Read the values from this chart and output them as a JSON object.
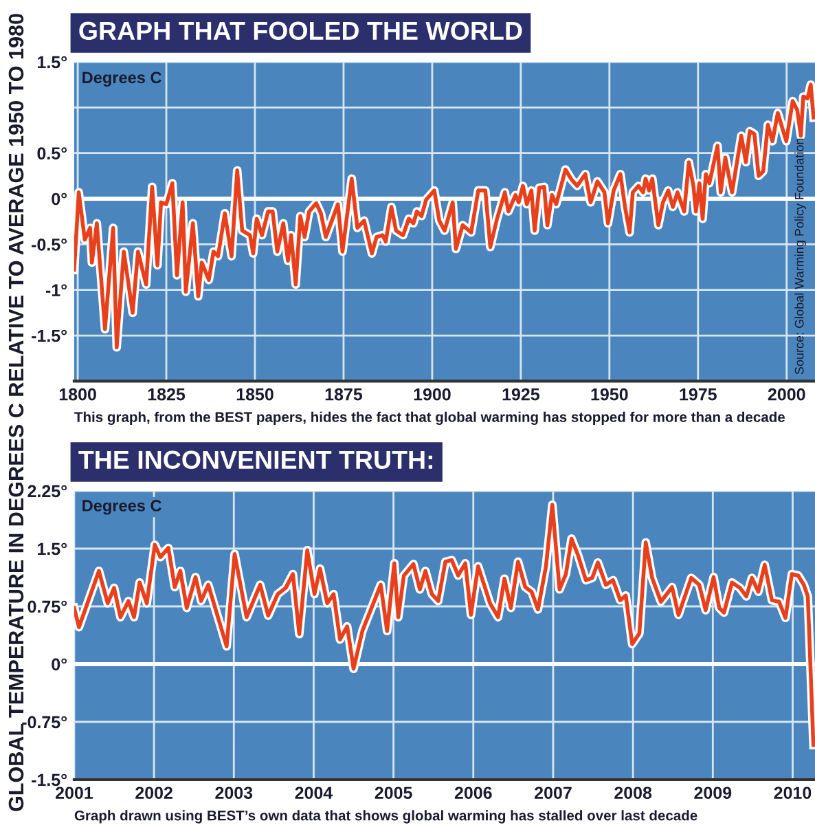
{
  "chart_data": [
    {
      "type": "line",
      "title": "GRAPH THAT FOOLED THE WORLD",
      "ylabel": "Degrees C",
      "annotations": [
        "This graph, from the BEST papers, hides the fact that global warming has stopped for more than a decade",
        "Source: Global Warming Policy Foundation",
        "GLOBAL TEMPERATURE IN DEGREES C RELATIVE TO AVERAGE 1950 TO 1980"
      ],
      "series": [
        {
          "color": "#e8401c",
          "x": [
            1799,
            1800.3,
            1802,
            1803.5,
            1804,
            1805.4,
            1807.7,
            1810,
            1811,
            1813,
            1815.5,
            1817,
            1819.3,
            1821,
            1822.5,
            1823.5,
            1825,
            1826.7,
            1828,
            1829.6,
            1830.5,
            1832.5,
            1834,
            1835,
            1837,
            1838.3,
            1839.6,
            1841.5,
            1843.4,
            1845,
            1846.4,
            1848.6,
            1849.5,
            1850.5,
            1852,
            1853.7,
            1855,
            1856.3,
            1858,
            1859.3,
            1860.2,
            1861.5,
            1862.8,
            1864,
            1865.3,
            1867.3,
            1868.6,
            1870,
            1873.4,
            1874.7,
            1877.3,
            1878.9,
            1880.8,
            1883,
            1884.3,
            1886,
            1886.9,
            1888.5,
            1889.8,
            1891.8,
            1893.4,
            1894.7,
            1895.7,
            1897,
            1898.3,
            1900.6,
            1902,
            1903.5,
            1905.8,
            1906.7,
            1908.6,
            1911,
            1913,
            1915,
            1916.4,
            1918.3,
            1920.5,
            1921.5,
            1923.5,
            1924.4,
            1925.6,
            1926.7,
            1928,
            1928.9,
            1930.2,
            1931.6,
            1932.5,
            1933.8,
            1935,
            1937.6,
            1939.3,
            1940.9,
            1943.2,
            1944.7,
            1946.6,
            1948.6,
            1949.6,
            1951.2,
            1953.1,
            1954.4,
            1955.7,
            1956.6,
            1958.2,
            1959.5,
            1960.2,
            1961.2,
            1962.1,
            1963.8,
            1965.1,
            1966.6,
            1967.9,
            1969.2,
            1971.1,
            1972.4,
            1973.7,
            1974.4,
            1975.4,
            1976.3,
            1977.2,
            1978.2,
            1980.5,
            1981.4,
            1982.7,
            1984.6,
            1987.2,
            1988.5,
            1989.6,
            1990.9,
            1992.1,
            1993.4,
            1994.7,
            1996,
            1997.5,
            1999.9,
            2001.7,
            2003,
            2004,
            2004.7,
            2005.9,
            2006.8,
            2007.6
          ],
          "values": [
            -0.78,
            0.07,
            -0.45,
            -0.32,
            -0.7,
            -0.27,
            -1.43,
            -0.32,
            -1.63,
            -0.58,
            -1.25,
            -0.58,
            -0.94,
            0.13,
            -0.73,
            -0.04,
            -0.06,
            0.17,
            -0.84,
            -0.04,
            -1.02,
            -0.27,
            -1.07,
            -0.7,
            -0.89,
            -0.58,
            -0.63,
            -0.16,
            -0.63,
            0.31,
            -0.35,
            -0.4,
            -0.6,
            -0.22,
            -0.4,
            -0.14,
            -0.14,
            -0.58,
            -0.27,
            -0.68,
            -0.4,
            -0.94,
            -0.19,
            -0.42,
            -0.14,
            -0.05,
            -0.16,
            -0.42,
            -0.06,
            -0.58,
            0.22,
            -0.32,
            -0.24,
            -0.6,
            -0.42,
            -0.4,
            -0.47,
            -0.09,
            -0.35,
            -0.4,
            -0.22,
            -0.27,
            -0.14,
            -0.19,
            -0.01,
            0.09,
            -0.24,
            -0.35,
            -0.04,
            -0.55,
            -0.29,
            -0.37,
            0.09,
            0.09,
            -0.53,
            -0.22,
            0.07,
            -0.14,
            0.04,
            -0.04,
            0.14,
            -0.06,
            0.09,
            -0.35,
            0.12,
            0.13,
            -0.29,
            0.04,
            -0.06,
            0.32,
            0.21,
            0.14,
            0.27,
            -0.04,
            0.19,
            0.07,
            -0.27,
            0.09,
            0.27,
            -0.09,
            -0.37,
            0.07,
            0.14,
            0.07,
            0.22,
            0.09,
            0.22,
            -0.29,
            -0.04,
            0.09,
            -0.09,
            0.07,
            -0.14,
            0.4,
            0.14,
            -0.14,
            0.17,
            -0.22,
            0.27,
            0.17,
            0.58,
            0.07,
            0.45,
            0.07,
            0.69,
            0.4,
            0.74,
            0.71,
            0.25,
            0.3,
            0.81,
            0.63,
            0.94,
            0.63,
            1.07,
            0.97,
            0.69,
            1.12,
            1.1,
            1.25,
            0.89
          ]
        }
      ],
      "xlim": [
        1799,
        2008
      ],
      "xticks": [
        1800,
        1825,
        1850,
        1875,
        1900,
        1925,
        1950,
        1975,
        2000
      ],
      "ylim": [
        -2,
        1.5
      ],
      "yticks": [
        {
          "value": -2,
          "label": null
        },
        {
          "value": -1.5,
          "label": "-1.5°"
        },
        {
          "value": -1,
          "label": "-1°"
        },
        {
          "value": -0.5,
          "label": "-0.5°"
        },
        {
          "value": 0,
          "label": "0°"
        },
        {
          "value": 0.5,
          "label": "0.5°"
        },
        {
          "value": 1,
          "label": null
        },
        {
          "value": 1.5,
          "label": "1.5°"
        }
      ],
      "ref_lines": [
        {
          "axis": "y",
          "value": 0,
          "color": "#ffffff"
        }
      ],
      "grid": true,
      "marker": "none",
      "line_style": "solid"
    },
    {
      "type": "line",
      "title": "THE INCONVENIENT TRUTH:",
      "ylabel": "Degrees C",
      "annotations": [
        "Graph drawn using BEST’s own data that shows global warming has stalled over last decade"
      ],
      "series": [
        {
          "color": "#e8401c",
          "x": [
            2001.0,
            2001.06,
            2001.31,
            2001.42,
            2001.5,
            2001.58,
            2001.68,
            2001.75,
            2001.82,
            2001.91,
            2002.01,
            2002.08,
            2002.18,
            2002.26,
            2002.33,
            2002.41,
            2002.52,
            2002.59,
            2002.68,
            2002.91,
            2003.01,
            2003.16,
            2003.33,
            2003.43,
            2003.55,
            2003.65,
            2003.74,
            2003.82,
            2003.92,
            2004.01,
            2004.08,
            2004.17,
            2004.25,
            2004.33,
            2004.42,
            2004.5,
            2004.61,
            2004.84,
            2004.92,
            2005.01,
            2005.06,
            2005.13,
            2005.25,
            2005.33,
            2005.4,
            2005.48,
            2005.56,
            2005.65,
            2005.73,
            2005.81,
            2005.9,
            2005.97,
            2006.06,
            2006.21,
            2006.31,
            2006.39,
            2006.47,
            2006.56,
            2006.65,
            2006.73,
            2006.81,
            2006.91,
            2006.99,
            2007.08,
            2007.16,
            2007.23,
            2007.31,
            2007.41,
            2007.49,
            2007.56,
            2007.66,
            2007.75,
            2007.84,
            2007.91,
            2007.99,
            2008.08,
            2008.16,
            2008.24,
            2008.35,
            2008.49,
            2008.57,
            2008.73,
            2008.83,
            2008.91,
            2009.01,
            2009.08,
            2009.14,
            2009.24,
            2009.34,
            2009.42,
            2009.49,
            2009.57,
            2009.65,
            2009.74,
            2009.83,
            2009.91,
            2009.99,
            2010.07,
            2010.14,
            2010.19,
            2010.26
          ],
          "values": [
            0.73,
            0.48,
            1.21,
            0.79,
            0.99,
            0.61,
            0.82,
            0.61,
            1.06,
            0.79,
            1.55,
            1.39,
            1.51,
            1.0,
            1.21,
            0.73,
            1.13,
            0.82,
            1.03,
            0.23,
            1.43,
            0.61,
            1.03,
            0.63,
            0.91,
            0.99,
            1.17,
            0.39,
            1.48,
            0.91,
            1.24,
            0.79,
            0.91,
            0.32,
            0.49,
            -0.06,
            0.43,
            1.03,
            0.43,
            1.31,
            0.61,
            1.15,
            1.3,
            0.97,
            1.21,
            0.91,
            0.82,
            1.33,
            1.35,
            1.15,
            1.31,
            0.64,
            1.27,
            0.79,
            0.61,
            1.11,
            0.73,
            1.33,
            1.0,
            0.94,
            0.71,
            1.27,
            2.07,
            0.97,
            1.17,
            1.63,
            1.42,
            1.09,
            1.12,
            1.32,
            1.03,
            1.09,
            0.83,
            0.89,
            0.26,
            0.4,
            1.58,
            1.12,
            0.81,
            1.0,
            0.64,
            1.12,
            1.03,
            0.7,
            1.13,
            0.73,
            0.67,
            1.06,
            0.99,
            0.88,
            1.12,
            0.94,
            1.29,
            0.83,
            0.81,
            0.6,
            1.17,
            1.15,
            1.03,
            0.88,
            -1.05
          ]
        }
      ],
      "xlim": [
        2001,
        2010.28
      ],
      "xticks": [
        2001,
        2002,
        2003,
        2004,
        2005,
        2006,
        2007,
        2008,
        2009,
        2010
      ],
      "ylim": [
        -1.5,
        2.25
      ],
      "yticks": [
        {
          "value": -1.5,
          "label": "-1.5°"
        },
        {
          "value": -0.75,
          "label": "-0.75°"
        },
        {
          "value": 0,
          "label": "0°"
        },
        {
          "value": 0.75,
          "label": "0.75°"
        },
        {
          "value": 1.5,
          "label": "1.5°"
        },
        {
          "value": 2.25,
          "label": "2.25°"
        }
      ],
      "ref_lines": [
        {
          "axis": "y",
          "value": 0,
          "color": "#ffffff"
        }
      ],
      "grid": true,
      "marker": "none",
      "line_style": "solid"
    }
  ]
}
